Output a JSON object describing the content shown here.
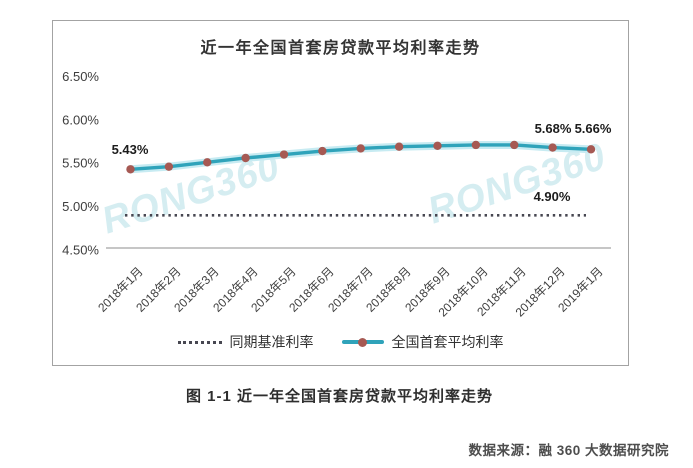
{
  "chart_data": {
    "type": "line",
    "title": "近一年全国首套房贷款平均利率走势",
    "categories": [
      "2018年1月",
      "2018年2月",
      "2018年3月",
      "2018年4月",
      "2018年5月",
      "2018年6月",
      "2018年7月",
      "2018年8月",
      "2018年9月",
      "2018年10月",
      "2018年11月",
      "2018年12月",
      "2019年1月"
    ],
    "series": [
      {
        "name": "同期基准利率",
        "style": "dotted",
        "color": "#474751",
        "values": [
          4.9,
          4.9,
          4.9,
          4.9,
          4.9,
          4.9,
          4.9,
          4.9,
          4.9,
          4.9,
          4.9,
          4.9,
          4.9
        ]
      },
      {
        "name": "全国首套平均利率",
        "style": "solid",
        "color": "#2fa3ba",
        "marker_color": "#a65953",
        "values": [
          5.43,
          5.46,
          5.51,
          5.56,
          5.6,
          5.64,
          5.67,
          5.69,
          5.7,
          5.71,
          5.71,
          5.68,
          5.66
        ]
      }
    ],
    "ylim": [
      4.5,
      6.5
    ],
    "yticks": {
      "values": [
        6.5,
        6.0,
        5.5,
        5.0,
        4.5
      ],
      "labels": [
        "6.50%",
        "6.00%",
        "5.50%",
        "5.00%",
        "4.50%"
      ]
    },
    "annotations": [
      {
        "text": "5.43%",
        "target": "2018年1月"
      },
      {
        "text": "5.68%",
        "target": "2018年12月"
      },
      {
        "text": "5.66%",
        "target": "2019年1月"
      },
      {
        "text": "4.90%",
        "target": "同期基准利率"
      }
    ],
    "grid": false,
    "legend_position": "bottom-inside",
    "xlabel": "",
    "ylabel": ""
  },
  "watermark": {
    "text": "RONG360"
  },
  "caption": "图 1-1 近一年全国首套房贷款平均利率走势",
  "source": "数据来源：融 360 大数据研究院",
  "colors": {
    "line": "#2fa3ba",
    "line_glow": "#c7ebf2",
    "marker": "#a65953",
    "benchmark": "#474751",
    "watermark": "#d2edf4",
    "box_border": "#a3a3a3",
    "axis": "#8c8c8c"
  }
}
